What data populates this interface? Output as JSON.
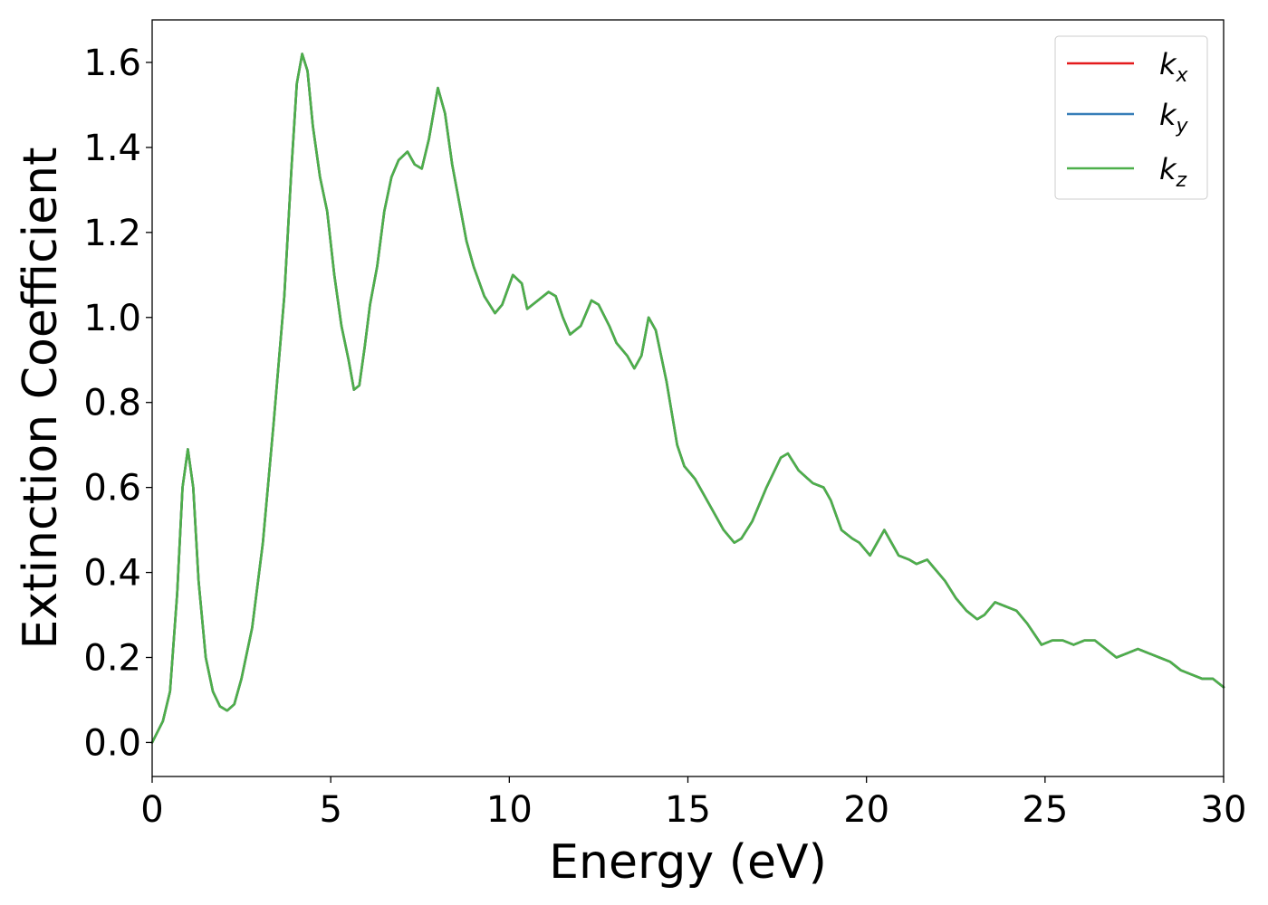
{
  "chart_data": {
    "type": "line",
    "xlabel": "Energy (eV)",
    "ylabel": "Extinction Coefficient",
    "xlim": [
      0,
      30
    ],
    "ylim": [
      -0.08,
      1.7
    ],
    "xticks": [
      0,
      5,
      10,
      15,
      20,
      25,
      30
    ],
    "xtick_labels": [
      "0",
      "5",
      "10",
      "15",
      "20",
      "25",
      "30"
    ],
    "yticks": [
      0.0,
      0.2,
      0.4,
      0.6,
      0.8,
      1.0,
      1.2,
      1.4,
      1.6
    ],
    "ytick_labels": [
      "0.0",
      "0.2",
      "0.4",
      "0.6",
      "0.8",
      "1.0",
      "1.2",
      "1.4",
      "1.6"
    ],
    "grid": false,
    "legend_position": "top-right",
    "x": [
      0.0,
      0.3,
      0.5,
      0.7,
      0.85,
      1.0,
      1.15,
      1.3,
      1.5,
      1.7,
      1.9,
      2.1,
      2.3,
      2.5,
      2.8,
      3.1,
      3.4,
      3.7,
      3.9,
      4.05,
      4.2,
      4.35,
      4.5,
      4.7,
      4.9,
      5.1,
      5.3,
      5.5,
      5.65,
      5.8,
      5.95,
      6.1,
      6.3,
      6.5,
      6.7,
      6.9,
      7.15,
      7.35,
      7.55,
      7.75,
      8.0,
      8.2,
      8.4,
      8.6,
      8.8,
      9.0,
      9.3,
      9.6,
      9.8,
      10.1,
      10.35,
      10.5,
      10.8,
      11.1,
      11.3,
      11.5,
      11.7,
      12.0,
      12.3,
      12.5,
      12.8,
      13.0,
      13.3,
      13.5,
      13.7,
      13.9,
      14.1,
      14.4,
      14.7,
      14.9,
      15.2,
      15.6,
      16.0,
      16.3,
      16.5,
      16.8,
      17.2,
      17.6,
      17.8,
      18.1,
      18.5,
      18.8,
      19.0,
      19.3,
      19.6,
      19.8,
      20.1,
      20.3,
      20.5,
      20.7,
      20.9,
      21.2,
      21.4,
      21.7,
      21.9,
      22.2,
      22.5,
      22.8,
      23.1,
      23.3,
      23.6,
      23.9,
      24.2,
      24.5,
      24.9,
      25.2,
      25.5,
      25.8,
      26.1,
      26.4,
      26.7,
      27.0,
      27.3,
      27.6,
      27.9,
      28.2,
      28.5,
      28.8,
      29.1,
      29.4,
      29.7,
      30.0
    ],
    "series": [
      {
        "name": "k_x",
        "color": "#e41a1c",
        "values": [
          0.0,
          0.05,
          0.12,
          0.35,
          0.6,
          0.69,
          0.6,
          0.38,
          0.2,
          0.12,
          0.085,
          0.075,
          0.09,
          0.15,
          0.27,
          0.47,
          0.75,
          1.05,
          1.35,
          1.55,
          1.62,
          1.58,
          1.45,
          1.33,
          1.25,
          1.1,
          0.98,
          0.9,
          0.83,
          0.84,
          0.93,
          1.03,
          1.12,
          1.25,
          1.33,
          1.37,
          1.39,
          1.36,
          1.35,
          1.42,
          1.54,
          1.48,
          1.36,
          1.27,
          1.18,
          1.12,
          1.05,
          1.01,
          1.03,
          1.1,
          1.08,
          1.02,
          1.04,
          1.06,
          1.05,
          1.0,
          0.96,
          0.98,
          1.04,
          1.03,
          0.98,
          0.94,
          0.91,
          0.88,
          0.91,
          1.0,
          0.97,
          0.85,
          0.7,
          0.65,
          0.62,
          0.56,
          0.5,
          0.47,
          0.48,
          0.52,
          0.6,
          0.67,
          0.68,
          0.64,
          0.61,
          0.6,
          0.57,
          0.5,
          0.48,
          0.47,
          0.44,
          0.47,
          0.5,
          0.47,
          0.44,
          0.43,
          0.42,
          0.43,
          0.41,
          0.38,
          0.34,
          0.31,
          0.29,
          0.3,
          0.33,
          0.32,
          0.31,
          0.28,
          0.23,
          0.24,
          0.24,
          0.23,
          0.24,
          0.24,
          0.22,
          0.2,
          0.21,
          0.22,
          0.21,
          0.2,
          0.19,
          0.17,
          0.16,
          0.15,
          0.15,
          0.13
        ]
      },
      {
        "name": "k_y",
        "color": "#377eb8",
        "values": [
          0.0,
          0.05,
          0.12,
          0.35,
          0.6,
          0.69,
          0.6,
          0.38,
          0.2,
          0.12,
          0.085,
          0.075,
          0.09,
          0.15,
          0.27,
          0.47,
          0.75,
          1.05,
          1.35,
          1.55,
          1.62,
          1.58,
          1.45,
          1.33,
          1.25,
          1.1,
          0.98,
          0.9,
          0.83,
          0.84,
          0.93,
          1.03,
          1.12,
          1.25,
          1.33,
          1.37,
          1.39,
          1.36,
          1.35,
          1.42,
          1.54,
          1.48,
          1.36,
          1.27,
          1.18,
          1.12,
          1.05,
          1.01,
          1.03,
          1.1,
          1.08,
          1.02,
          1.04,
          1.06,
          1.05,
          1.0,
          0.96,
          0.98,
          1.04,
          1.03,
          0.98,
          0.94,
          0.91,
          0.88,
          0.91,
          1.0,
          0.97,
          0.85,
          0.7,
          0.65,
          0.62,
          0.56,
          0.5,
          0.47,
          0.48,
          0.52,
          0.6,
          0.67,
          0.68,
          0.64,
          0.61,
          0.6,
          0.57,
          0.5,
          0.48,
          0.47,
          0.44,
          0.47,
          0.5,
          0.47,
          0.44,
          0.43,
          0.42,
          0.43,
          0.41,
          0.38,
          0.34,
          0.31,
          0.29,
          0.3,
          0.33,
          0.32,
          0.31,
          0.28,
          0.23,
          0.24,
          0.24,
          0.23,
          0.24,
          0.24,
          0.22,
          0.2,
          0.21,
          0.22,
          0.21,
          0.2,
          0.19,
          0.17,
          0.16,
          0.15,
          0.15,
          0.13
        ]
      },
      {
        "name": "k_z",
        "color": "#4daf4a",
        "values": [
          0.0,
          0.05,
          0.12,
          0.35,
          0.6,
          0.69,
          0.6,
          0.38,
          0.2,
          0.12,
          0.085,
          0.075,
          0.09,
          0.15,
          0.27,
          0.47,
          0.75,
          1.05,
          1.35,
          1.55,
          1.62,
          1.58,
          1.45,
          1.33,
          1.25,
          1.1,
          0.98,
          0.9,
          0.83,
          0.84,
          0.93,
          1.03,
          1.12,
          1.25,
          1.33,
          1.37,
          1.39,
          1.36,
          1.35,
          1.42,
          1.54,
          1.48,
          1.36,
          1.27,
          1.18,
          1.12,
          1.05,
          1.01,
          1.03,
          1.1,
          1.08,
          1.02,
          1.04,
          1.06,
          1.05,
          1.0,
          0.96,
          0.98,
          1.04,
          1.03,
          0.98,
          0.94,
          0.91,
          0.88,
          0.91,
          1.0,
          0.97,
          0.85,
          0.7,
          0.65,
          0.62,
          0.56,
          0.5,
          0.47,
          0.48,
          0.52,
          0.6,
          0.67,
          0.68,
          0.64,
          0.61,
          0.6,
          0.57,
          0.5,
          0.48,
          0.47,
          0.44,
          0.47,
          0.5,
          0.47,
          0.44,
          0.43,
          0.42,
          0.43,
          0.41,
          0.38,
          0.34,
          0.31,
          0.29,
          0.3,
          0.33,
          0.32,
          0.31,
          0.28,
          0.23,
          0.24,
          0.24,
          0.23,
          0.24,
          0.24,
          0.22,
          0.2,
          0.21,
          0.22,
          0.21,
          0.2,
          0.19,
          0.17,
          0.16,
          0.15,
          0.15,
          0.13
        ]
      }
    ]
  },
  "legend": {
    "entries": [
      {
        "base": "k",
        "sub": "x"
      },
      {
        "base": "k",
        "sub": "y"
      },
      {
        "base": "k",
        "sub": "z"
      }
    ]
  }
}
